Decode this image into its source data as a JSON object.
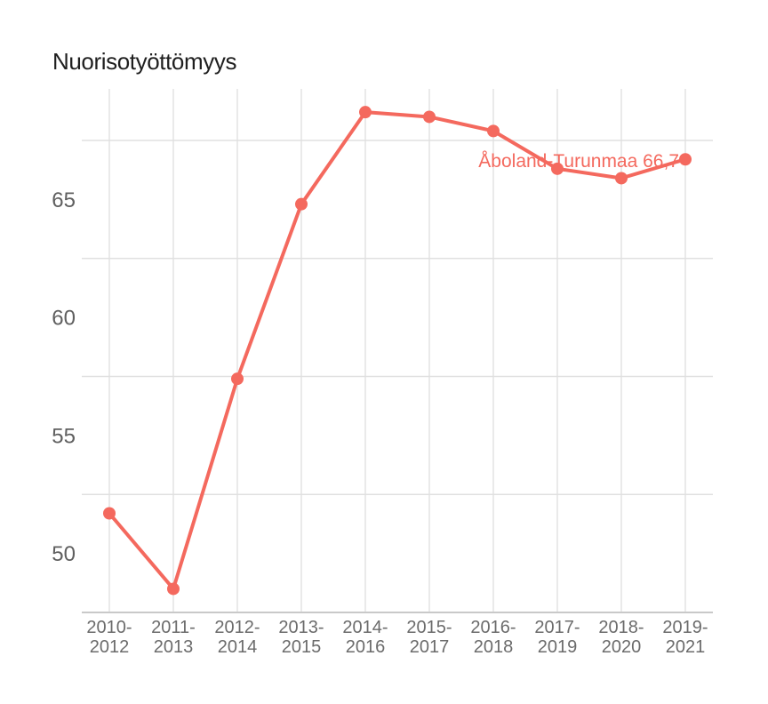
{
  "title": "Nuorisotyöttömyys",
  "colors": {
    "line": "#f4695e",
    "point": "#f4695e",
    "title_text": "#1f1f1f",
    "y_tick_text": "#5f5f5f",
    "x_tick_text": "#6b6b6b",
    "gridline": "#e0e0e0",
    "axis_line": "#c9c9c9",
    "background": "#ffffff"
  },
  "chart_data": {
    "type": "line",
    "title": "Nuorisotyöttömyys",
    "categories": [
      "2010-2012",
      "2011-2013",
      "2012-2014",
      "2013-2015",
      "2014-2016",
      "2015-2017",
      "2016-2018",
      "2017-2019",
      "2018-2020",
      "2019-2021"
    ],
    "series": [
      {
        "name": "Åboland-Turunmaa",
        "values": [
          51.7,
          48.5,
          57.4,
          64.8,
          68.7,
          68.5,
          67.9,
          66.3,
          65.9,
          66.7
        ]
      }
    ],
    "annotation": "Åboland-Turunmaa 66,7",
    "annotation_anchor_category": "2019-2021",
    "yticks": [
      65,
      60,
      55,
      50
    ],
    "gridline_values": [
      67.5,
      62.5,
      57.5,
      52.5
    ],
    "ylim": [
      47.5,
      69.7
    ],
    "xlabel": "",
    "ylabel": "",
    "grid": "on",
    "legend_position": "none"
  }
}
